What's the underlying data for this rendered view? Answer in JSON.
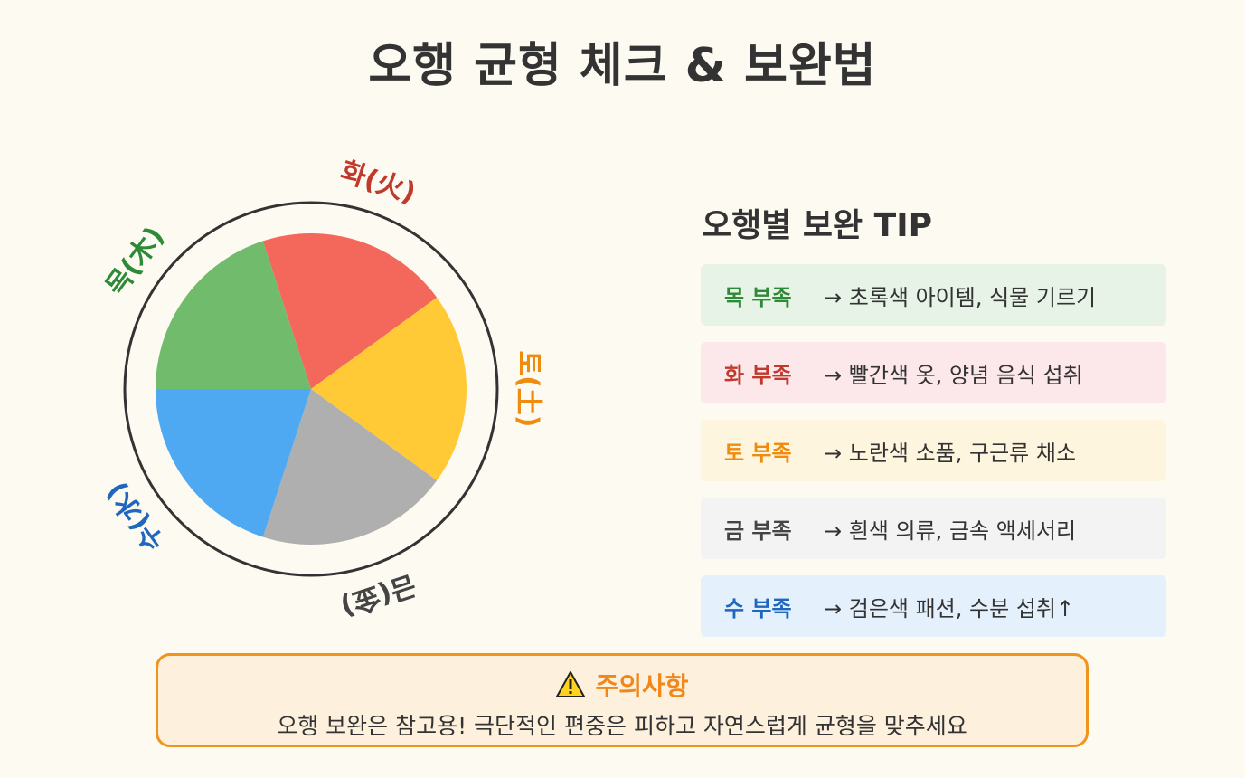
{
  "title": "오행 균형 체크 & 보완법",
  "wheel": {
    "elements": [
      {
        "label": "화(火)",
        "color": "#f4675b",
        "label_color": "#c0392b"
      },
      {
        "label": "토(土)",
        "color": "#ffca35",
        "label_color": "#ef8c0e"
      },
      {
        "label": "금(金)",
        "color": "#b0afaf",
        "label_color": "#444444"
      },
      {
        "label": "수(水)",
        "color": "#4ea9f2",
        "label_color": "#1f66bd"
      },
      {
        "label": "목(木)",
        "color": "#70bc6c",
        "label_color": "#2e8a36"
      }
    ]
  },
  "tips": {
    "heading": "오행별 보완 TIP",
    "items": [
      {
        "key": "목 부족",
        "text": "→ 초록색 아이템, 식물 기르기",
        "key_color": "#2e8a36",
        "bg": "#e6f3e6"
      },
      {
        "key": "화 부족",
        "text": "→ 빨간색 옷, 양념 음식 섭취",
        "key_color": "#c0392b",
        "bg": "#fce7ea"
      },
      {
        "key": "토 부족",
        "text": "→ 노란색 소품, 구근류 채소",
        "key_color": "#ef8c0e",
        "bg": "#fdf5dd"
      },
      {
        "key": "금 부족",
        "text": "→ 흰색 의류, 금속 액세서리",
        "key_color": "#444444",
        "bg": "#f3f3f3"
      },
      {
        "key": "수 부족",
        "text": "→ 검은색 패션, 수분 섭취↑",
        "key_color": "#1f66bd",
        "bg": "#e4f1fc"
      }
    ]
  },
  "notice": {
    "icon": "warning-icon",
    "title": "주의사항",
    "text": "오행 보완은 참고용! 극단적인 편중은 피하고 자연스럽게 균형을 맞추세요"
  }
}
